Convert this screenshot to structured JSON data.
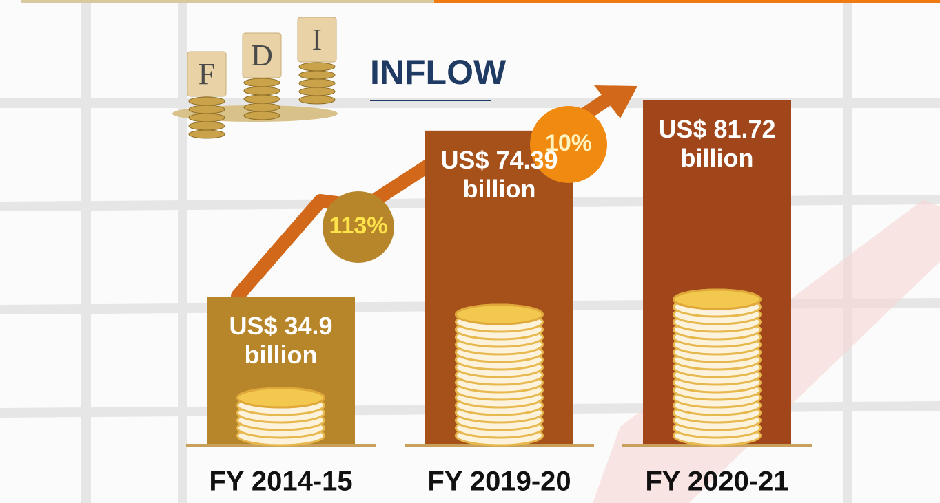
{
  "chart_data": {
    "type": "bar",
    "title_letters": [
      "F",
      "D",
      "I"
    ],
    "title": "INFLOW",
    "categories": [
      "FY 2014-15",
      "FY 2019-20",
      "FY 2020-21"
    ],
    "values": [
      34.9,
      74.39,
      81.72
    ],
    "value_labels": [
      "US$ 34.9 billion",
      "US$ 74.39 billion",
      "US$ 81.72 billion"
    ],
    "colors": [
      "#b8862a",
      "#a6501a",
      "#a0461a"
    ],
    "annotations": [
      "113%",
      "10%"
    ]
  }
}
